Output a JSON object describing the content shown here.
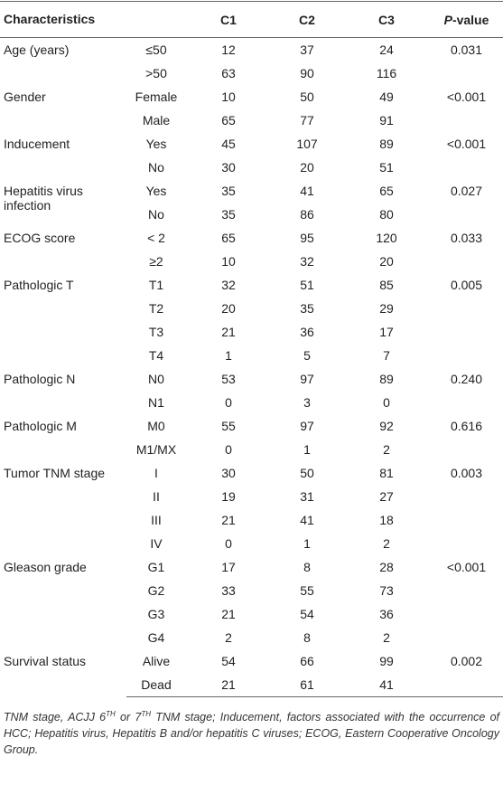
{
  "table": {
    "header": {
      "characteristics": "Characteristics",
      "columns": [
        "C1",
        "C2",
        "C3"
      ],
      "pvalue_italic": "P",
      "pvalue_rest": "-value"
    },
    "groups": [
      {
        "label": "Age (years)",
        "p": "0.031",
        "rows": [
          [
            "≤50",
            12,
            37,
            24
          ],
          [
            ">50",
            63,
            90,
            116
          ]
        ]
      },
      {
        "label": "Gender",
        "p": "<0.001",
        "rows": [
          [
            "Female",
            10,
            50,
            49
          ],
          [
            "Male",
            65,
            77,
            91
          ]
        ]
      },
      {
        "label": "Inducement",
        "p": "<0.001",
        "rows": [
          [
            "Yes",
            45,
            107,
            89
          ],
          [
            "No",
            30,
            20,
            51
          ]
        ]
      },
      {
        "label": "Hepatitis virus infection",
        "p": "0.027",
        "rows": [
          [
            "Yes",
            35,
            41,
            65
          ],
          [
            "No",
            35,
            86,
            80
          ]
        ]
      },
      {
        "label": "ECOG score",
        "p": "0.033",
        "rows": [
          [
            "< 2",
            65,
            95,
            120
          ],
          [
            "≥2",
            10,
            32,
            20
          ]
        ]
      },
      {
        "label": "Pathologic T",
        "p": "0.005",
        "rows": [
          [
            "T1",
            32,
            51,
            85
          ],
          [
            "T2",
            20,
            35,
            29
          ],
          [
            "T3",
            21,
            36,
            17
          ],
          [
            "T4",
            1,
            5,
            7
          ]
        ]
      },
      {
        "label": "Pathologic N",
        "p": "0.240",
        "rows": [
          [
            "N0",
            53,
            97,
            89
          ],
          [
            "N1",
            0,
            3,
            0
          ]
        ]
      },
      {
        "label": "Pathologic M",
        "p": "0.616",
        "rows": [
          [
            "M0",
            55,
            97,
            92
          ],
          [
            "M1/MX",
            0,
            1,
            2
          ]
        ]
      },
      {
        "label": "Tumor TNM stage",
        "p": "0.003",
        "rows": [
          [
            "I",
            30,
            50,
            81
          ],
          [
            "II",
            19,
            31,
            27
          ],
          [
            "III",
            21,
            41,
            18
          ],
          [
            "IV",
            0,
            1,
            2
          ]
        ]
      },
      {
        "label": "Gleason grade",
        "p": "<0.001",
        "rows": [
          [
            "G1",
            17,
            8,
            28
          ],
          [
            "G2",
            33,
            55,
            73
          ],
          [
            "G3",
            21,
            54,
            36
          ],
          [
            "G4",
            2,
            8,
            2
          ]
        ]
      },
      {
        "label": "Survival status",
        "p": "0.002",
        "rows": [
          [
            "Alive",
            54,
            66,
            99
          ],
          [
            "Dead",
            21,
            61,
            41
          ]
        ]
      }
    ],
    "footnote": [
      "TNM stage, ACJJ 6",
      "TH",
      " or 7",
      "TH",
      " TNM stage; Inducement, factors associated with the occurrence of HCC; Hepatitis virus, Hepatitis B and/or hepatitis C viruses; ECOG, Eastern Cooperative Oncology Group."
    ]
  }
}
